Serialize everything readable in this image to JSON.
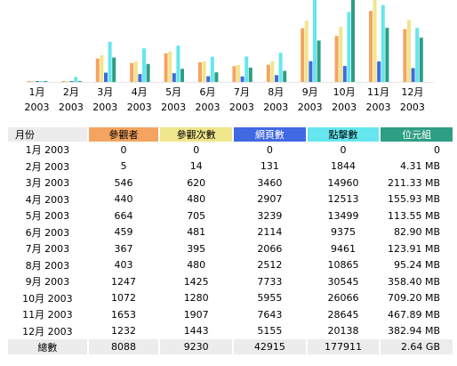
{
  "chart_data": {
    "type": "bar",
    "categories": [
      {
        "month": "1月",
        "year": "2003"
      },
      {
        "month": "2月",
        "year": "2003"
      },
      {
        "month": "3月",
        "year": "2003"
      },
      {
        "month": "4月",
        "year": "2003"
      },
      {
        "month": "5月",
        "year": "2003"
      },
      {
        "month": "6月",
        "year": "2003"
      },
      {
        "month": "7月",
        "year": "2003"
      },
      {
        "month": "8月",
        "year": "2003"
      },
      {
        "month": "9月",
        "year": "2003"
      },
      {
        "month": "10月",
        "year": "2003"
      },
      {
        "month": "11月",
        "year": "2003"
      },
      {
        "month": "12月",
        "year": "2003"
      }
    ],
    "series": [
      {
        "name": "參觀者",
        "color": "#f4a460",
        "values": [
          0,
          5,
          546,
          440,
          664,
          459,
          367,
          403,
          1247,
          1072,
          1653,
          1232
        ]
      },
      {
        "name": "參觀次數",
        "color": "#f0e68c",
        "values": [
          0,
          14,
          620,
          480,
          705,
          481,
          395,
          480,
          1425,
          1280,
          1907,
          1443
        ]
      },
      {
        "name": "網頁數",
        "color": "#4169e1",
        "values": [
          0,
          131,
          3460,
          2907,
          3239,
          2114,
          2066,
          2512,
          7733,
          5955,
          7643,
          5155
        ]
      },
      {
        "name": "點擊數",
        "color": "#66e6ee",
        "values": [
          0,
          1844,
          14960,
          12513,
          13499,
          9375,
          9461,
          10865,
          30545,
          26066,
          28645,
          20138
        ]
      },
      {
        "name": "位元組",
        "color": "#2e9e84",
        "values_mb": [
          0,
          4.31,
          211.33,
          155.93,
          113.55,
          82.9,
          123.91,
          95.24,
          358.4,
          709.2,
          467.89,
          382.94
        ]
      }
    ],
    "scale_groups": [
      [
        "參觀者",
        "參觀次數"
      ],
      [
        "網頁數",
        "點擊數"
      ],
      [
        "位元組"
      ]
    ]
  },
  "table": {
    "headers": [
      "月份",
      "參觀者",
      "參觀次數",
      "網頁數",
      "點擊數",
      "位元組"
    ],
    "rows": [
      [
        "1月 2003",
        "0",
        "0",
        "0",
        "0",
        "0"
      ],
      [
        "2月 2003",
        "5",
        "14",
        "131",
        "1844",
        "4.31 MB"
      ],
      [
        "3月 2003",
        "546",
        "620",
        "3460",
        "14960",
        "211.33 MB"
      ],
      [
        "4月 2003",
        "440",
        "480",
        "2907",
        "12513",
        "155.93 MB"
      ],
      [
        "5月 2003",
        "664",
        "705",
        "3239",
        "13499",
        "113.55 MB"
      ],
      [
        "6月 2003",
        "459",
        "481",
        "2114",
        "9375",
        "82.90 MB"
      ],
      [
        "7月 2003",
        "367",
        "395",
        "2066",
        "9461",
        "123.91 MB"
      ],
      [
        "8月 2003",
        "403",
        "480",
        "2512",
        "10865",
        "95.24 MB"
      ],
      [
        "9月 2003",
        "1247",
        "1425",
        "7733",
        "30545",
        "358.40 MB"
      ],
      [
        "10月 2003",
        "1072",
        "1280",
        "5955",
        "26066",
        "709.20 MB"
      ],
      [
        "11月 2003",
        "1653",
        "1907",
        "7643",
        "28645",
        "467.89 MB"
      ],
      [
        "12月 2003",
        "1232",
        "1443",
        "5155",
        "20138",
        "382.94 MB"
      ]
    ],
    "total": [
      "總數",
      "8088",
      "9230",
      "42915",
      "177911",
      "2.64 GB"
    ]
  }
}
